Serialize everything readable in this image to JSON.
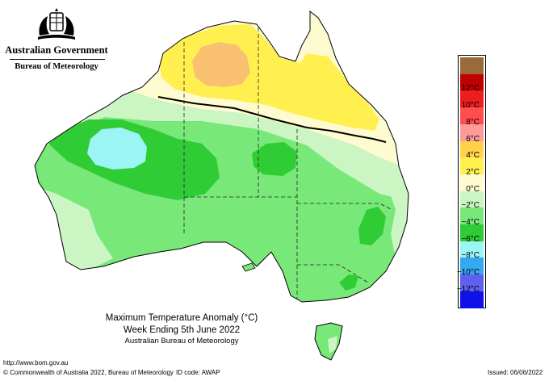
{
  "header": {
    "government": "Australian Government",
    "bureau": "Bureau of Meteorology"
  },
  "title": {
    "line1": "Maximum Temperature Anomaly (°C)",
    "line2": "Week Ending 5th June 2022",
    "line3": "Australian Bureau of Meteorology"
  },
  "legend": {
    "bins": [
      {
        "color": "#9a6a3a",
        "label": ""
      },
      {
        "color": "#c00000",
        "label": "12°C"
      },
      {
        "color": "#ee1e1e",
        "label": "10°C"
      },
      {
        "color": "#ff4e4e",
        "label": "8°C"
      },
      {
        "color": "#ff9a9a",
        "label": "6°C"
      },
      {
        "color": "#ffd24a",
        "label": "4°C"
      },
      {
        "color": "#fff050",
        "label": "2°C"
      },
      {
        "color": "#fffbd0",
        "label": "0°C"
      },
      {
        "color": "#ccf5c4",
        "label": "−2°C"
      },
      {
        "color": "#78e878",
        "label": "−4°C"
      },
      {
        "color": "#2fcc35",
        "label": "−6°C"
      },
      {
        "color": "#9cf5f5",
        "label": "−8°C"
      },
      {
        "color": "#34a8f0",
        "label": "−10°C"
      },
      {
        "color": "#6060f0",
        "label": "−12°C"
      },
      {
        "color": "#1010e8",
        "label": ""
      }
    ]
  },
  "footer": {
    "url": "http://www.bom.gov.au",
    "copyright": "© Commonwealth of Australia 2022, Bureau of Meteorology",
    "id_code": "ID code: AWAP",
    "issued": "Issued: 06/06/2022"
  },
  "map_regions": [
    {
      "name": "north-warm-band",
      "anomaly": "0 to 2°C"
    },
    {
      "name": "top-end-anomaly",
      "anomaly": "2 to 4°C"
    },
    {
      "name": "kimberley-anomaly",
      "anomaly": "4 to 6°C"
    },
    {
      "name": "interior-cool",
      "anomaly": "-2 to -4°C"
    },
    {
      "name": "central-cool-core",
      "anomaly": "-4 to -6°C"
    },
    {
      "name": "wa-cold-spot",
      "anomaly": "-6 to -8°C"
    }
  ]
}
